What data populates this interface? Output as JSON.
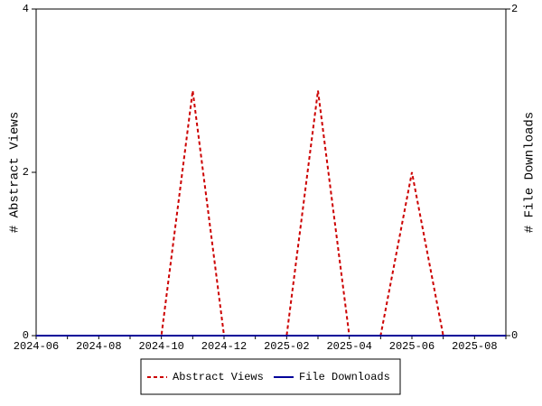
{
  "chart_data": {
    "type": "line",
    "categories": [
      "2024-06",
      null,
      "2024-08",
      null,
      "2024-10",
      null,
      "2024-12",
      null,
      "2025-02",
      null,
      "2025-04",
      null,
      "2025-06",
      null,
      "2025-08",
      null
    ],
    "series": [
      {
        "name": "Abstract Views",
        "color": "#cc0000",
        "values": [
          0,
          0,
          0,
          0,
          0,
          3,
          0,
          0,
          0,
          3,
          0,
          0,
          2,
          0,
          0,
          0
        ]
      },
      {
        "name": "File Downloads",
        "color": "#000099",
        "axis": "y2",
        "values": [
          0,
          0,
          0,
          0,
          0,
          0,
          0,
          0,
          0,
          0,
          0,
          0,
          0,
          0,
          0,
          0
        ]
      }
    ],
    "ylabel": "# Abstract Views",
    "y2label": "# File Downloads",
    "ylim": [
      0,
      4
    ],
    "yticks": [
      0,
      2,
      4
    ],
    "y2lim": [
      0,
      2
    ],
    "y2ticks": [
      0,
      2
    ],
    "legend": "bottom"
  }
}
